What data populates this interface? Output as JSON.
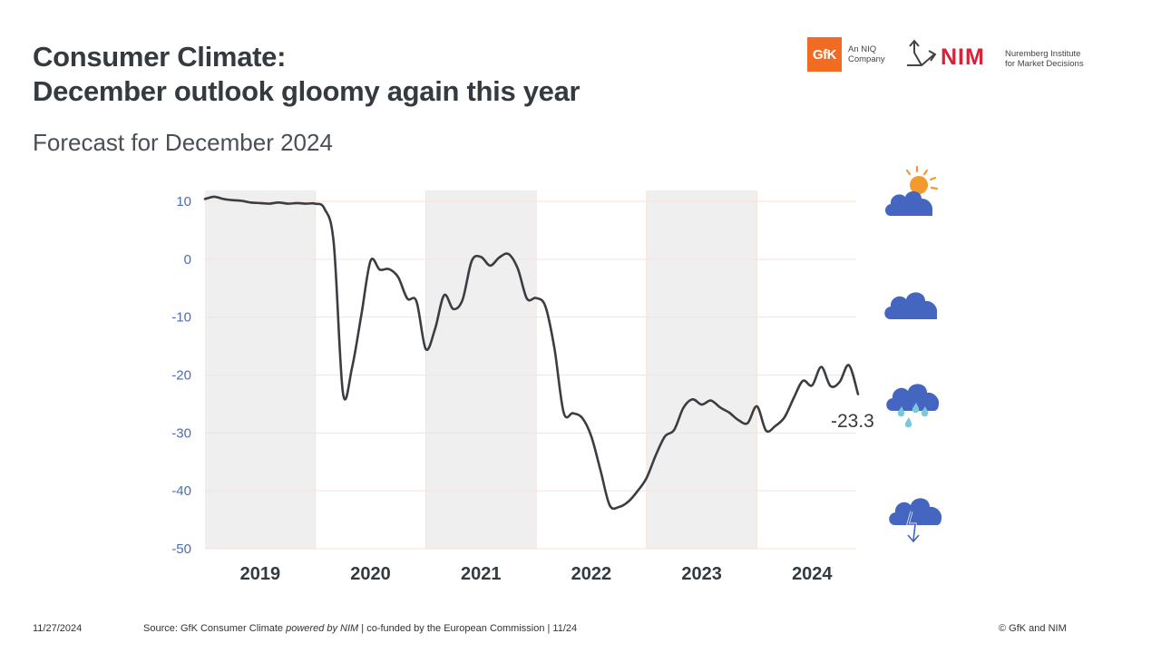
{
  "header": {
    "title_line1": "Consumer Climate:",
    "title_line2": "December outlook gloomy again this year",
    "subtitle": "Forecast for December 2024"
  },
  "logos": {
    "gfk_mark": "GfK",
    "gfk_tagline_1": "An NIQ",
    "gfk_tagline_2": "Company",
    "nim_mark": "NIM",
    "nim_tagline_1": "Nuremberg Institute",
    "nim_tagline_2": "for Market Decisions"
  },
  "colors": {
    "line": "#3a3e43",
    "axis_tick": "#4a6cb3",
    "band": "#efefef",
    "grid": "#f7e3d9",
    "gfk_orange": "#f26b22",
    "nim_red": "#d6233a",
    "cloud": "#4466c0",
    "sun": "#f29a2e",
    "rain": "#7cc8d8"
  },
  "weather_icons": [
    "sun-cloud-icon",
    "cloud-icon",
    "rain-cloud-icon",
    "storm-cloud-icon"
  ],
  "chart_data": {
    "type": "line",
    "title": "",
    "xlabel": "",
    "ylabel": "",
    "ylim": [
      -50,
      10
    ],
    "yticks": [
      10,
      0,
      -10,
      -20,
      -30,
      -40,
      -50
    ],
    "categories": [
      "2019",
      "2020",
      "2021",
      "2022",
      "2023",
      "2024"
    ],
    "shaded_years": [
      "2019",
      "2021",
      "2023"
    ],
    "grid": true,
    "end_label": "-23.3",
    "series": [
      {
        "x": [
          "2019-01",
          "2019-02",
          "2019-03",
          "2019-04",
          "2019-05",
          "2019-06",
          "2019-07",
          "2019-08",
          "2019-09",
          "2019-10",
          "2019-11",
          "2019-12",
          "2020-01",
          "2020-02",
          "2020-03",
          "2020-04",
          "2020-05",
          "2020-06",
          "2020-07",
          "2020-08",
          "2020-09",
          "2020-10",
          "2020-11",
          "2020-12",
          "2021-01",
          "2021-02",
          "2021-03",
          "2021-04",
          "2021-05",
          "2021-06",
          "2021-07",
          "2021-08",
          "2021-09",
          "2021-10",
          "2021-11",
          "2021-12",
          "2022-01",
          "2022-02",
          "2022-03",
          "2022-04",
          "2022-05",
          "2022-06",
          "2022-07",
          "2022-08",
          "2022-09",
          "2022-10",
          "2022-11",
          "2022-12",
          "2023-01",
          "2023-02",
          "2023-03",
          "2023-04",
          "2023-05",
          "2023-06",
          "2023-07",
          "2023-08",
          "2023-09",
          "2023-10",
          "2023-11",
          "2023-12",
          "2024-01",
          "2024-02",
          "2024-03",
          "2024-04",
          "2024-05",
          "2024-06",
          "2024-07",
          "2024-08",
          "2024-09",
          "2024-10",
          "2024-11",
          "2024-12"
        ],
        "values": [
          10.4,
          10.8,
          10.4,
          10.2,
          10.1,
          9.8,
          9.7,
          9.6,
          9.8,
          9.6,
          9.7,
          9.6,
          9.6,
          8.7,
          2.7,
          -23.1,
          -18.6,
          -9.6,
          -0.3,
          -1.8,
          -1.7,
          -3.1,
          -6.8,
          -7.3,
          -15.5,
          -12.1,
          -6.2,
          -8.6,
          -7.0,
          -0.3,
          0.4,
          -1.1,
          0.3,
          0.9,
          -1.6,
          -6.8,
          -6.7,
          -8.1,
          -15.5,
          -26.5,
          -26.6,
          -27.4,
          -30.6,
          -36.5,
          -42.5,
          -42.8,
          -41.9,
          -40.1,
          -37.8,
          -33.9,
          -30.6,
          -29.5,
          -25.7,
          -24.2,
          -25.1,
          -24.4,
          -25.6,
          -26.5,
          -27.8,
          -28.3,
          -25.4,
          -29.6,
          -28.8,
          -27.3,
          -24.0,
          -21.0,
          -21.8,
          -18.6,
          -21.9,
          -21.2,
          -18.3,
          -23.3
        ]
      }
    ]
  },
  "footer": {
    "date": "11/27/2024",
    "source_prefix": "Source: GfK Consumer Climate ",
    "source_italic": "powered by NIM",
    "source_suffix": " | co-funded by the European Commission | 11/24",
    "copyright": "© GfK and NIM"
  }
}
